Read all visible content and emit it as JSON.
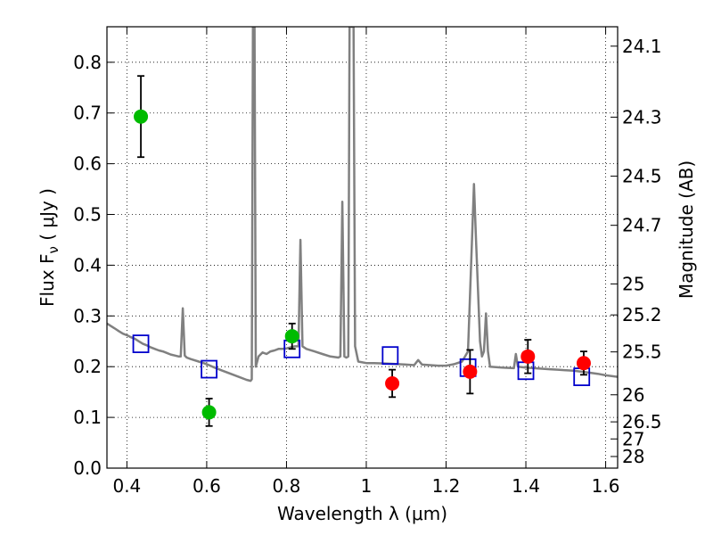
{
  "chart_data": {
    "type": "scatter",
    "title": "",
    "xlabel": "Wavelength  λ (μm)",
    "ylabel": "Flux  F",
    "ylabel_sub": "ν",
    "ylabel_unit": " ( μJy )",
    "y2label": "Magnitude (AB)",
    "xlim": [
      0.35,
      1.63
    ],
    "ylim": [
      0.0,
      0.87
    ],
    "grid": true,
    "x_ticks": [
      {
        "value": 0.4,
        "label": "0.4"
      },
      {
        "value": 0.6,
        "label": "0.6"
      },
      {
        "value": 0.8,
        "label": "0.8"
      },
      {
        "value": 1.0,
        "label": "1"
      },
      {
        "value": 1.2,
        "label": "1.2"
      },
      {
        "value": 1.4,
        "label": "1.4"
      },
      {
        "value": 1.6,
        "label": "1.6"
      }
    ],
    "y_ticks": [
      {
        "value": 0.0,
        "label": "0.0"
      },
      {
        "value": 0.1,
        "label": "0.1"
      },
      {
        "value": 0.2,
        "label": "0.2"
      },
      {
        "value": 0.3,
        "label": "0.3"
      },
      {
        "value": 0.4,
        "label": "0.4"
      },
      {
        "value": 0.5,
        "label": "0.5"
      },
      {
        "value": 0.6,
        "label": "0.6"
      },
      {
        "value": 0.7,
        "label": "0.7"
      },
      {
        "value": 0.8,
        "label": "0.8"
      }
    ],
    "y2_ticks": [
      {
        "mag": 24.1,
        "label": "24.1"
      },
      {
        "mag": 24.3,
        "label": "24.3"
      },
      {
        "mag": 24.5,
        "label": "24.5"
      },
      {
        "mag": 24.7,
        "label": "24.7"
      },
      {
        "mag": 25.0,
        "label": "25"
      },
      {
        "mag": 25.2,
        "label": "25.2"
      },
      {
        "mag": 25.5,
        "label": "25.5"
      },
      {
        "mag": 26.0,
        "label": "26"
      },
      {
        "mag": 26.5,
        "label": "26.5"
      },
      {
        "mag": 27.0,
        "label": "27"
      },
      {
        "mag": 28.0,
        "label": "28"
      }
    ],
    "series": [
      {
        "kind": "model_spectrum",
        "color": "#808080",
        "points": [
          [
            0.35,
            0.285
          ],
          [
            0.36,
            0.28
          ],
          [
            0.37,
            0.275
          ],
          [
            0.38,
            0.27
          ],
          [
            0.39,
            0.265
          ],
          [
            0.4,
            0.262
          ],
          [
            0.41,
            0.258
          ],
          [
            0.42,
            0.255
          ],
          [
            0.43,
            0.25
          ],
          [
            0.44,
            0.245
          ],
          [
            0.45,
            0.242
          ],
          [
            0.46,
            0.238
          ],
          [
            0.47,
            0.235
          ],
          [
            0.48,
            0.232
          ],
          [
            0.49,
            0.23
          ],
          [
            0.5,
            0.227
          ],
          [
            0.51,
            0.224
          ],
          [
            0.52,
            0.222
          ],
          [
            0.53,
            0.22
          ],
          [
            0.535,
            0.22
          ],
          [
            0.54,
            0.315
          ],
          [
            0.545,
            0.222
          ],
          [
            0.55,
            0.218
          ],
          [
            0.56,
            0.215
          ],
          [
            0.58,
            0.21
          ],
          [
            0.6,
            0.205
          ],
          [
            0.62,
            0.198
          ],
          [
            0.64,
            0.192
          ],
          [
            0.66,
            0.186
          ],
          [
            0.68,
            0.18
          ],
          [
            0.7,
            0.174
          ],
          [
            0.71,
            0.172
          ],
          [
            0.713,
            0.175
          ],
          [
            0.716,
            0.87
          ],
          [
            0.72,
            0.87
          ],
          [
            0.723,
            0.2
          ],
          [
            0.73,
            0.22
          ],
          [
            0.74,
            0.228
          ],
          [
            0.75,
            0.225
          ],
          [
            0.76,
            0.23
          ],
          [
            0.77,
            0.232
          ],
          [
            0.78,
            0.235
          ],
          [
            0.79,
            0.235
          ],
          [
            0.8,
            0.236
          ],
          [
            0.81,
            0.238
          ],
          [
            0.82,
            0.24
          ],
          [
            0.825,
            0.24
          ],
          [
            0.83,
            0.24
          ],
          [
            0.835,
            0.45
          ],
          [
            0.84,
            0.24
          ],
          [
            0.85,
            0.235
          ],
          [
            0.87,
            0.23
          ],
          [
            0.89,
            0.225
          ],
          [
            0.91,
            0.22
          ],
          [
            0.93,
            0.218
          ],
          [
            0.935,
            0.22
          ],
          [
            0.94,
            0.525
          ],
          [
            0.945,
            0.22
          ],
          [
            0.95,
            0.218
          ],
          [
            0.955,
            0.22
          ],
          [
            0.958,
            0.87
          ],
          [
            0.962,
            0.87
          ],
          [
            0.965,
            0.87
          ],
          [
            0.968,
            0.87
          ],
          [
            0.972,
            0.24
          ],
          [
            0.98,
            0.21
          ],
          [
            1.0,
            0.207
          ],
          [
            1.02,
            0.207
          ],
          [
            1.05,
            0.206
          ],
          [
            1.08,
            0.205
          ],
          [
            1.1,
            0.204
          ],
          [
            1.12,
            0.203
          ],
          [
            1.13,
            0.213
          ],
          [
            1.14,
            0.204
          ],
          [
            1.16,
            0.203
          ],
          [
            1.18,
            0.202
          ],
          [
            1.2,
            0.202
          ],
          [
            1.22,
            0.205
          ],
          [
            1.24,
            0.21
          ],
          [
            1.255,
            0.23
          ],
          [
            1.265,
            0.45
          ],
          [
            1.27,
            0.56
          ],
          [
            1.275,
            0.45
          ],
          [
            1.285,
            0.25
          ],
          [
            1.29,
            0.22
          ],
          [
            1.295,
            0.23
          ],
          [
            1.3,
            0.305
          ],
          [
            1.305,
            0.23
          ],
          [
            1.31,
            0.2
          ],
          [
            1.34,
            0.198
          ],
          [
            1.37,
            0.197
          ],
          [
            1.375,
            0.225
          ],
          [
            1.38,
            0.2
          ],
          [
            1.4,
            0.198
          ],
          [
            1.42,
            0.197
          ],
          [
            1.44,
            0.196
          ],
          [
            1.46,
            0.195
          ],
          [
            1.48,
            0.194
          ],
          [
            1.5,
            0.193
          ],
          [
            1.52,
            0.192
          ],
          [
            1.54,
            0.19
          ],
          [
            1.56,
            0.188
          ],
          [
            1.58,
            0.186
          ],
          [
            1.6,
            0.183
          ],
          [
            1.63,
            0.18
          ]
        ]
      },
      {
        "kind": "model_photometry",
        "marker": "open_square",
        "color": "#0000cc",
        "x": [
          0.435,
          0.606,
          0.814,
          1.06,
          1.255,
          1.4,
          1.54
        ],
        "y": [
          0.245,
          0.195,
          0.235,
          0.222,
          0.198,
          0.192,
          0.18
        ]
      },
      {
        "kind": "observed_green",
        "marker": "filled_circle",
        "color": "#00bb00",
        "x": [
          0.435,
          0.606,
          0.814
        ],
        "y": [
          0.693,
          0.11,
          0.26
        ],
        "yerr": [
          0.08,
          0.027,
          0.025
        ]
      },
      {
        "kind": "observed_red",
        "marker": "filled_circle",
        "color": "#ff0000",
        "x": [
          1.065,
          1.26,
          1.405,
          1.545
        ],
        "y": [
          0.167,
          0.19,
          0.22,
          0.207
        ],
        "yerr": [
          0.027,
          0.043,
          0.033,
          0.023
        ]
      }
    ]
  }
}
